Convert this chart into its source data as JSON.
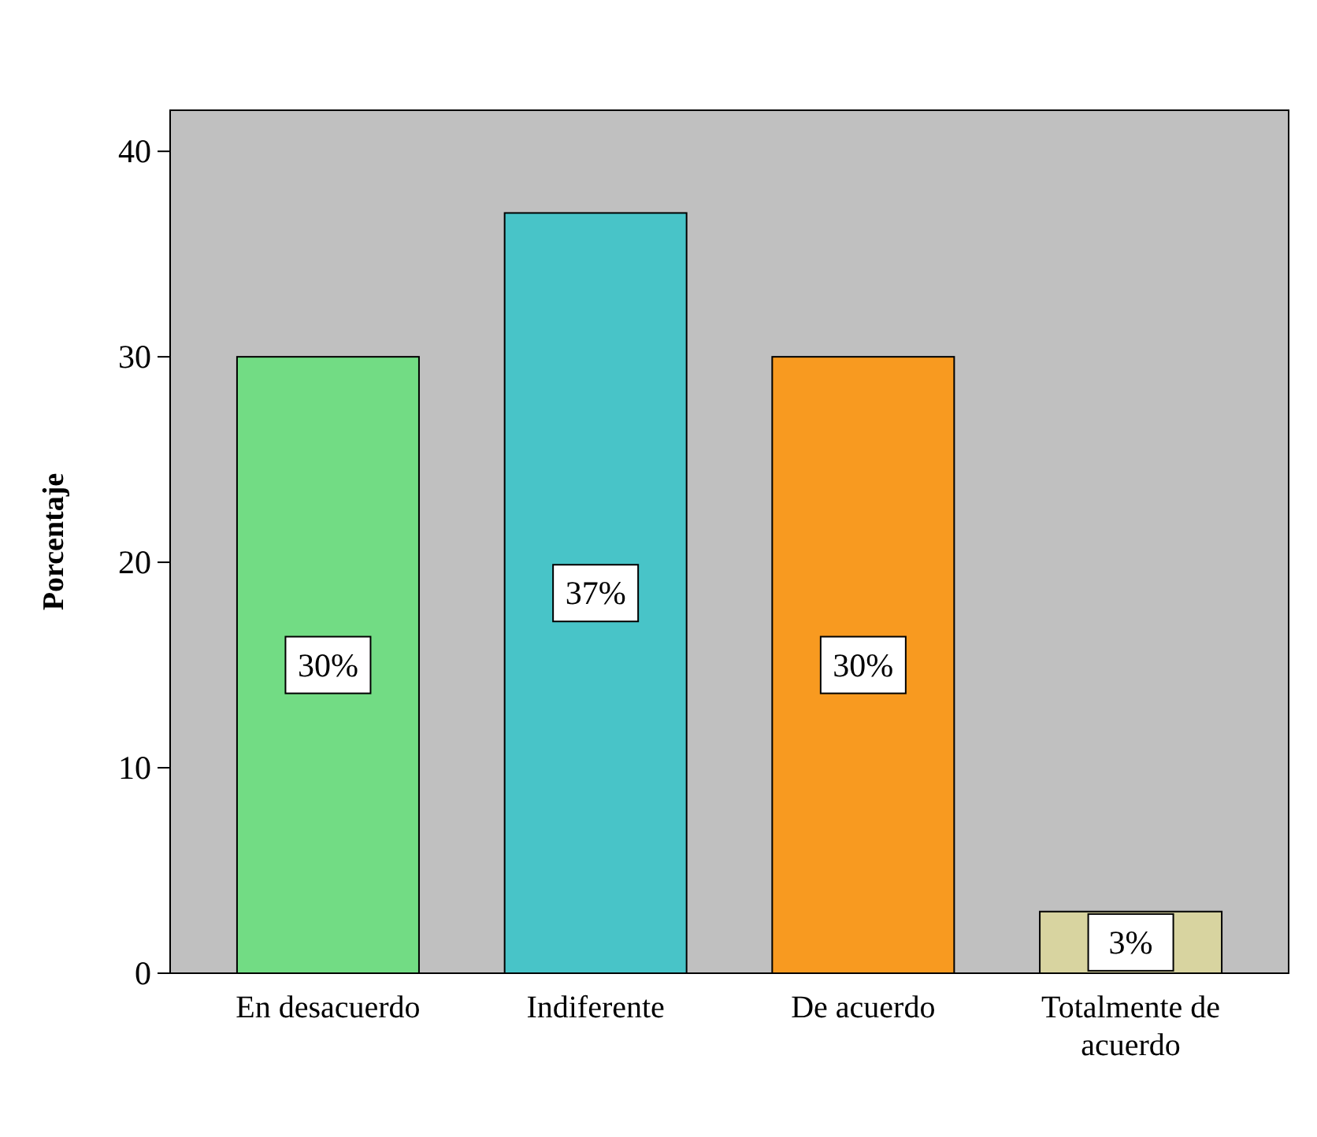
{
  "chart_data": {
    "type": "bar",
    "ylabel": "Porcentaje",
    "categories": [
      "En desacuerdo",
      "Indiferente",
      "De acuerdo",
      "Totalmente de acuerdo"
    ],
    "values": [
      30,
      37,
      30,
      3
    ],
    "colors": [
      "#72dc84",
      "#48c4c8",
      "#f89a20",
      "#d8d4a0"
    ],
    "value_labels": [
      "30%",
      "37%",
      "30%",
      "3%"
    ],
    "ylim": [
      0,
      42
    ],
    "yticks": [
      0,
      10,
      20,
      30,
      40
    ],
    "grid": false
  }
}
